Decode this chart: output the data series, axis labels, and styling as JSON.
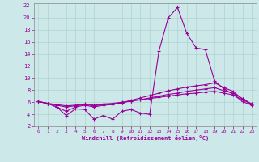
{
  "xlabel": "Windchill (Refroidissement éolien,°C)",
  "bg_color": "#cce8e8",
  "line_color": "#990099",
  "xlim": [
    -0.5,
    23.5
  ],
  "ylim": [
    2,
    22.4
  ],
  "yticks": [
    2,
    4,
    6,
    8,
    10,
    12,
    14,
    16,
    18,
    20,
    22
  ],
  "xticks": [
    0,
    1,
    2,
    3,
    4,
    5,
    6,
    7,
    8,
    9,
    10,
    11,
    12,
    13,
    14,
    15,
    16,
    17,
    18,
    19,
    20,
    21,
    22,
    23
  ],
  "line1_x": [
    0,
    1,
    2,
    3,
    4,
    5,
    6,
    7,
    8,
    9,
    10,
    11,
    12,
    13,
    14,
    15,
    16,
    17,
    18,
    19,
    20,
    21,
    22,
    23
  ],
  "line1_y": [
    6.1,
    5.8,
    5.2,
    3.8,
    4.9,
    4.8,
    3.2,
    3.8,
    3.2,
    4.5,
    4.8,
    4.2,
    4.0,
    14.5,
    20.0,
    21.7,
    17.4,
    15.0,
    14.7,
    9.5,
    8.2,
    7.3,
    6.1,
    5.5
  ],
  "line2_x": [
    0,
    1,
    2,
    3,
    4,
    5,
    6,
    7,
    8,
    9,
    10,
    11,
    12,
    13,
    14,
    15,
    16,
    17,
    18,
    19,
    20,
    21,
    22,
    23
  ],
  "line2_y": [
    6.1,
    5.8,
    5.2,
    4.5,
    5.2,
    5.5,
    5.2,
    5.5,
    5.6,
    5.9,
    6.3,
    6.7,
    7.1,
    7.5,
    7.9,
    8.2,
    8.5,
    8.7,
    8.9,
    9.2,
    8.4,
    7.8,
    6.5,
    5.6
  ],
  "line3_x": [
    0,
    1,
    2,
    3,
    4,
    5,
    6,
    7,
    8,
    9,
    10,
    11,
    12,
    13,
    14,
    15,
    16,
    17,
    18,
    19,
    20,
    21,
    22,
    23
  ],
  "line3_y": [
    6.1,
    5.8,
    5.5,
    5.2,
    5.4,
    5.6,
    5.4,
    5.6,
    5.7,
    5.9,
    6.2,
    6.4,
    6.7,
    7.0,
    7.3,
    7.5,
    7.8,
    8.0,
    8.2,
    8.4,
    7.9,
    7.5,
    6.6,
    5.7
  ],
  "line4_x": [
    0,
    1,
    2,
    3,
    4,
    5,
    6,
    7,
    8,
    9,
    10,
    11,
    12,
    13,
    14,
    15,
    16,
    17,
    18,
    19,
    20,
    21,
    22,
    23
  ],
  "line4_y": [
    6.1,
    5.8,
    5.6,
    5.4,
    5.5,
    5.7,
    5.5,
    5.7,
    5.8,
    6.0,
    6.2,
    6.4,
    6.6,
    6.8,
    7.0,
    7.2,
    7.4,
    7.5,
    7.7,
    7.8,
    7.5,
    7.2,
    6.4,
    5.7
  ]
}
